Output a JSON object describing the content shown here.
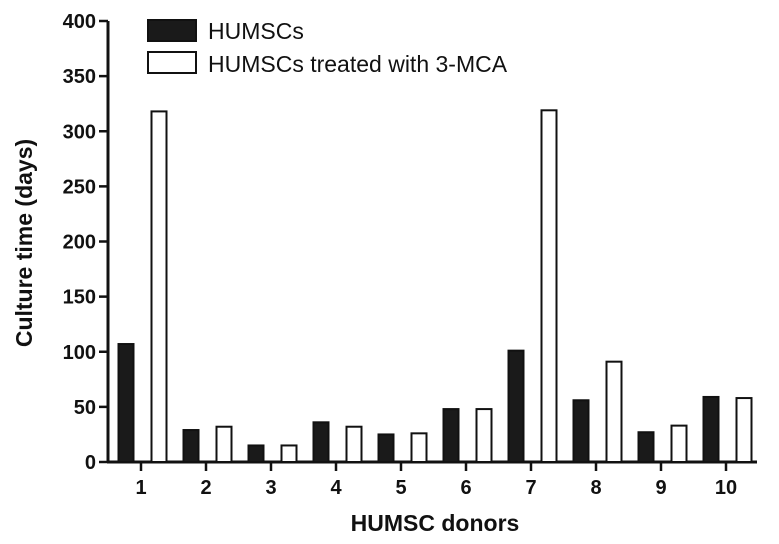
{
  "chart_data": {
    "type": "bar",
    "title": "",
    "xlabel": "HUMSC donors",
    "ylabel": "Culture time (days)",
    "categories": [
      "1",
      "2",
      "3",
      "4",
      "5",
      "6",
      "7",
      "8",
      "9",
      "10"
    ],
    "series": [
      {
        "name": "HUMSCs",
        "values": [
          107,
          29,
          15,
          36,
          25,
          48,
          101,
          56,
          27,
          59
        ],
        "fill": "#1a1a1a"
      },
      {
        "name": "HUMSCs treated with 3-MCA",
        "values": [
          318,
          32,
          15,
          32,
          26,
          48,
          319,
          91,
          33,
          58
        ],
        "fill": "#ffffff"
      }
    ],
    "ylim": [
      0,
      400
    ],
    "yticks": [
      0,
      50,
      100,
      150,
      200,
      250,
      300,
      350,
      400
    ],
    "grid": false,
    "legend_position": "top-left"
  }
}
